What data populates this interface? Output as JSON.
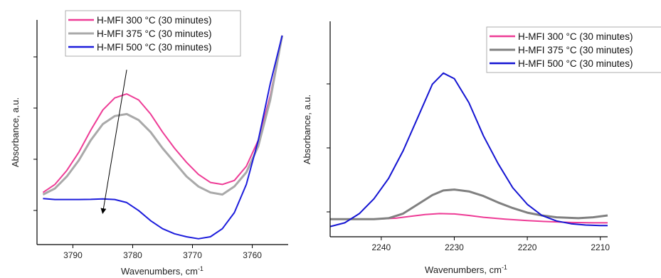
{
  "chart_data": [
    {
      "type": "line",
      "xlabel": "Wavenumbers, cm",
      "xlabel_sup": "-1",
      "ylabel": "Absorbance, a.u.",
      "xlim": [
        3796,
        3754
      ],
      "ylim": [
        0,
        100
      ],
      "xticks": [
        3790,
        3780,
        3770,
        3760
      ],
      "legend_position": "top-center",
      "annotation": "arrow",
      "annotation_from": {
        "x": 3781,
        "y": 83
      },
      "annotation_to": {
        "x": 3785,
        "y": 12
      },
      "series": [
        {
          "name": "H-MFI 300 °C (30 minutes)",
          "color": "#ee3c96",
          "x": [
            3795,
            3793,
            3791,
            3789,
            3787,
            3785,
            3783,
            3781,
            3779,
            3777,
            3775,
            3773,
            3771,
            3769,
            3767,
            3765,
            3763,
            3761,
            3759,
            3757,
            3755
          ],
          "y": [
            22,
            26,
            33,
            42,
            53,
            63,
            69,
            71,
            68,
            61,
            52,
            44,
            37,
            31,
            27,
            26,
            28,
            35,
            48,
            70,
            100
          ]
        },
        {
          "name": "H-MFI 375 °C (30 minutes)",
          "color": "#a9a9a9",
          "x": [
            3795,
            3793,
            3791,
            3789,
            3787,
            3785,
            3783,
            3781,
            3779,
            3777,
            3775,
            3773,
            3771,
            3769,
            3767,
            3765,
            3763,
            3761,
            3759,
            3757,
            3755
          ],
          "y": [
            21,
            24,
            30,
            38,
            48,
            56,
            60,
            61,
            58,
            52,
            44,
            37,
            30,
            25,
            22,
            21,
            25,
            32,
            45,
            68,
            100
          ]
        },
        {
          "name": "H-MFI 500 °C (30 minutes)",
          "color": "#1c1cdc",
          "x": [
            3795,
            3793,
            3791,
            3789,
            3787,
            3785,
            3783,
            3781,
            3779,
            3777,
            3775,
            3773,
            3771,
            3769,
            3767,
            3765,
            3763,
            3761,
            3759,
            3757,
            3755
          ],
          "y": [
            19,
            18.5,
            18.5,
            18.5,
            18.6,
            18.8,
            18.5,
            17,
            13,
            8,
            4,
            1.5,
            0,
            -1,
            0,
            4,
            12,
            26,
            48,
            76,
            100
          ]
        }
      ]
    },
    {
      "type": "line",
      "xlabel": "Wavenumbers, cm",
      "xlabel_sup": "-1",
      "ylabel": "Absorbance, a.u.",
      "xlim": [
        2247,
        2209
      ],
      "ylim": [
        0,
        100
      ],
      "xticks": [
        2240,
        2230,
        2220,
        2210
      ],
      "legend_position": "top-right",
      "series": [
        {
          "name": "H-MFI 300 °C (30 minutes)",
          "color": "#ee3c96",
          "x": [
            2247,
            2244,
            2241,
            2238,
            2236,
            2234,
            2232,
            2230,
            2228,
            2226,
            2223,
            2220,
            2217,
            2214,
            2211,
            2209
          ],
          "y": [
            3,
            3,
            3,
            3.5,
            4.5,
            5.5,
            6,
            5.8,
            5,
            4,
            3,
            2.2,
            1.6,
            1.2,
            1,
            1
          ]
        },
        {
          "name": "H-MFI 375 °C (30 minutes)",
          "color": "#808080",
          "x": [
            2247,
            2244,
            2241,
            2239,
            2237,
            2235,
            2233,
            2231.5,
            2230,
            2228,
            2226,
            2224,
            2222,
            2220,
            2218,
            2216,
            2213,
            2211,
            2209
          ],
          "y": [
            3,
            3,
            3,
            3.5,
            6,
            11,
            16,
            18.5,
            19,
            18,
            15.5,
            12,
            9,
            6.5,
            5,
            4,
            3.5,
            4,
            5
          ]
        },
        {
          "name": "H-MFI 500 °C (30 minutes)",
          "color": "#1414d2",
          "x": [
            2247,
            2245,
            2243,
            2241,
            2239,
            2237,
            2235,
            2233,
            2231.5,
            2230,
            2228,
            2226,
            2224,
            2222,
            2220,
            2218,
            2216,
            2214,
            2212,
            2210,
            2209
          ],
          "y": [
            -1,
            1,
            6,
            14,
            25,
            40,
            58,
            76,
            82,
            79,
            66,
            48,
            33,
            20,
            11,
            5,
            2,
            0.5,
            -0.2,
            -0.5,
            -0.5
          ]
        }
      ]
    }
  ]
}
